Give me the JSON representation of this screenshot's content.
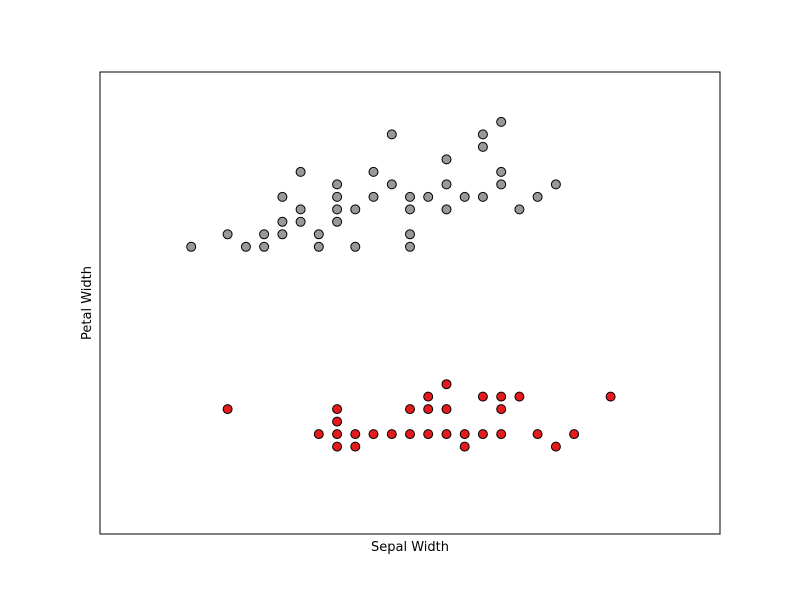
{
  "chart_data": {
    "type": "scatter",
    "title": "",
    "xlabel": "Sepal Width",
    "ylabel": "Petal Width",
    "xlim": [
      1.7,
      5.1
    ],
    "ylim": [
      -0.8,
      2.9
    ],
    "ticks_visible": false,
    "grid": false,
    "legend": "none",
    "series": [
      {
        "color": "#999999",
        "edge_color": "#000000",
        "points": [
          [
            2.2,
            1.5
          ],
          [
            2.4,
            1.6
          ],
          [
            2.5,
            1.5
          ],
          [
            2.6,
            1.5
          ],
          [
            2.6,
            1.6
          ],
          [
            2.7,
            1.6
          ],
          [
            2.7,
            1.7
          ],
          [
            2.7,
            1.9
          ],
          [
            2.8,
            1.7
          ],
          [
            2.8,
            1.8
          ],
          [
            2.8,
            2.1
          ],
          [
            2.9,
            1.5
          ],
          [
            2.9,
            1.6
          ],
          [
            3.0,
            1.7
          ],
          [
            3.0,
            1.8
          ],
          [
            3.0,
            1.9
          ],
          [
            3.0,
            2.0
          ],
          [
            3.1,
            1.5
          ],
          [
            3.1,
            1.8
          ],
          [
            3.2,
            1.9
          ],
          [
            3.2,
            2.1
          ],
          [
            3.3,
            2.0
          ],
          [
            3.3,
            2.4
          ],
          [
            3.4,
            1.5
          ],
          [
            3.4,
            1.6
          ],
          [
            3.4,
            1.8
          ],
          [
            3.4,
            1.9
          ],
          [
            3.5,
            1.9
          ],
          [
            3.6,
            1.8
          ],
          [
            3.6,
            2.0
          ],
          [
            3.6,
            2.2
          ],
          [
            3.7,
            1.9
          ],
          [
            3.8,
            1.9
          ],
          [
            3.8,
            2.3
          ],
          [
            3.8,
            2.4
          ],
          [
            3.9,
            2.0
          ],
          [
            3.9,
            2.1
          ],
          [
            3.9,
            2.5
          ],
          [
            4.0,
            1.8
          ],
          [
            4.1,
            1.9
          ],
          [
            4.2,
            2.0
          ]
        ]
      },
      {
        "color": "#e41a1c",
        "edge_color": "#000000",
        "points": [
          [
            2.4,
            0.2
          ],
          [
            2.9,
            0.0
          ],
          [
            3.0,
            0.1
          ],
          [
            3.0,
            0.2
          ],
          [
            3.0,
            -0.1
          ],
          [
            3.0,
            0.0
          ],
          [
            3.1,
            0.0
          ],
          [
            3.1,
            -0.1
          ],
          [
            3.2,
            0.0
          ],
          [
            3.3,
            0.0
          ],
          [
            3.4,
            0.2
          ],
          [
            3.4,
            0.0
          ],
          [
            3.5,
            0.3
          ],
          [
            3.5,
            0.2
          ],
          [
            3.5,
            0.0
          ],
          [
            3.6,
            0.4
          ],
          [
            3.6,
            0.2
          ],
          [
            3.6,
            0.0
          ],
          [
            3.7,
            0.0
          ],
          [
            3.7,
            -0.1
          ],
          [
            3.8,
            0.3
          ],
          [
            3.8,
            0.0
          ],
          [
            3.9,
            0.3
          ],
          [
            3.9,
            0.2
          ],
          [
            3.9,
            0.0
          ],
          [
            4.0,
            0.3
          ],
          [
            4.1,
            0.0
          ],
          [
            4.2,
            -0.1
          ],
          [
            4.3,
            0.0
          ],
          [
            4.5,
            0.3
          ]
        ]
      }
    ]
  }
}
